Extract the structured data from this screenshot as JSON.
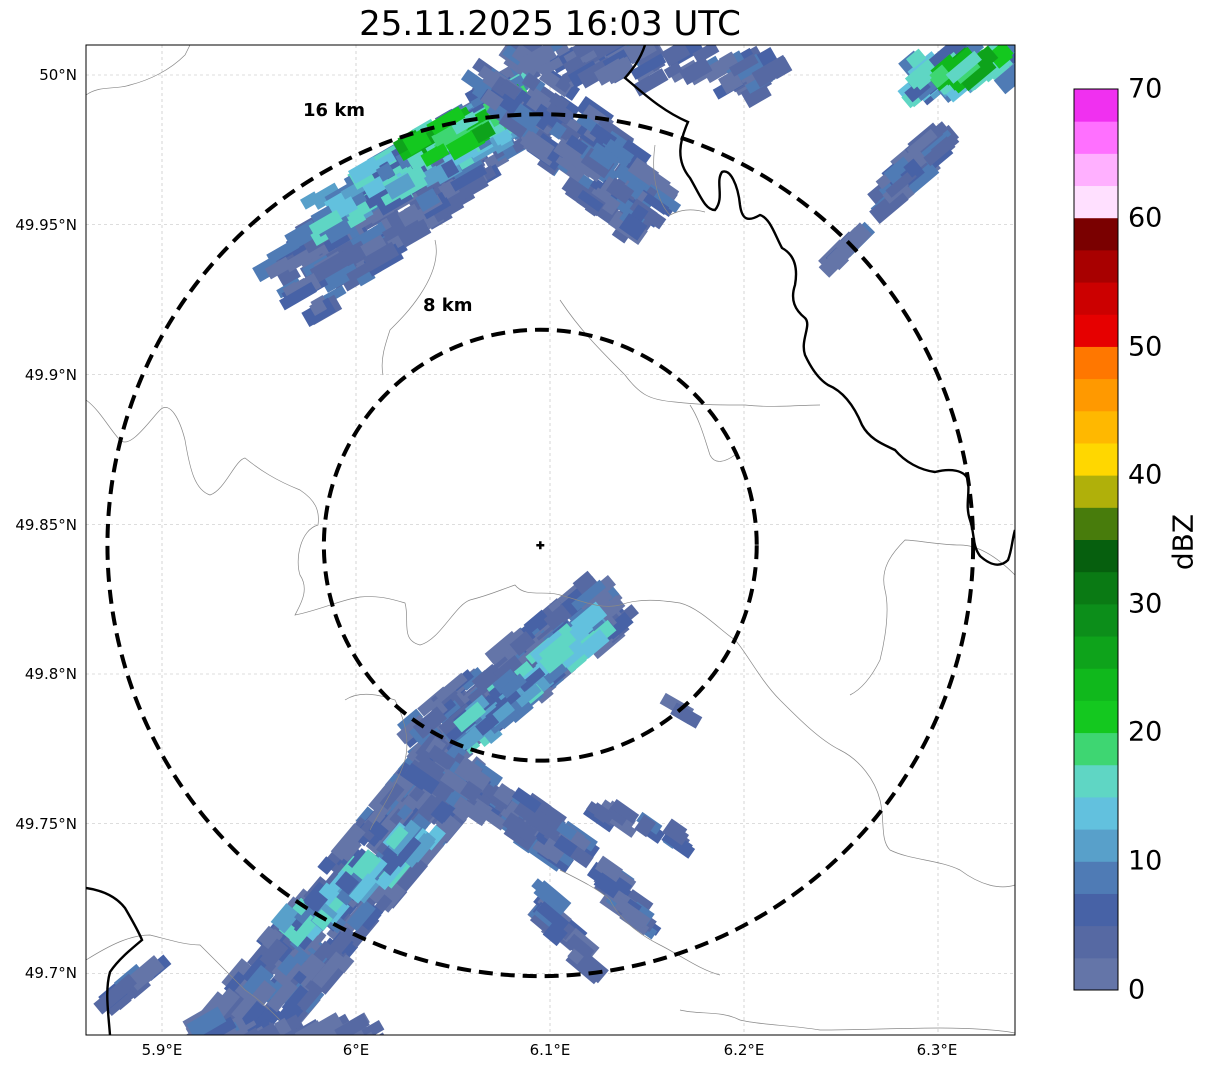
{
  "title": "25.11.2025 16:03 UTC",
  "map": {
    "lat_ticks": [
      "50°N",
      "49.95°N",
      "49.9°N",
      "49.85°N",
      "49.8°N",
      "49.75°N",
      "49.7°N"
    ],
    "lon_ticks": [
      "5.9°E",
      "6°E",
      "6.1°E",
      "6.2°E",
      "6.3°E"
    ],
    "radar_center": {
      "lon": 6.095,
      "lat": 49.843
    },
    "rings": [
      {
        "label": "8 km",
        "radius_km": 8
      },
      {
        "label": "16 km",
        "radius_km": 16
      }
    ]
  },
  "colorbar": {
    "label": "dBZ",
    "ticks": [
      "0",
      "10",
      "20",
      "30",
      "40",
      "50",
      "60",
      "70"
    ],
    "colors": [
      "#6475a8",
      "#5669a3",
      "#4762a6",
      "#4f7bb5",
      "#58a0ca",
      "#62c1de",
      "#5fd6c4",
      "#3ed672",
      "#14c81f",
      "#10b81c",
      "#0ea31b",
      "#0c8e1a",
      "#0a7a14",
      "#065f0e",
      "#487c0c",
      "#b0b00a",
      "#ffd700",
      "#ffb800",
      "#ff9900",
      "#ff7700",
      "#e60000",
      "#cc0000",
      "#a80000",
      "#7a0000",
      "#ffe0ff",
      "#ffb0ff",
      "#ff70ff",
      "#f030f0"
    ]
  }
}
